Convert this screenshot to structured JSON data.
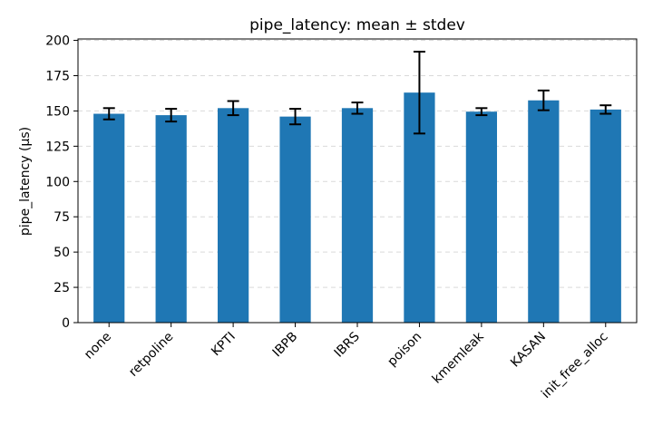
{
  "chart_data": {
    "type": "bar",
    "title": "pipe_latency: mean ± stdev",
    "xlabel": "",
    "ylabel": "pipe_latency (µs)",
    "categories": [
      "none",
      "retpoline",
      "KPTI",
      "IBPB",
      "IBRS",
      "poison",
      "kmemleak",
      "KASAN",
      "init_free_alloc"
    ],
    "values": [
      148,
      147,
      152,
      146,
      152,
      163,
      149.5,
      157.5,
      151
    ],
    "errors": [
      4,
      4.5,
      5,
      5.5,
      4,
      29,
      2.5,
      7,
      3
    ],
    "ylim": [
      0,
      201
    ],
    "yticks": [
      0,
      25,
      50,
      75,
      100,
      125,
      150,
      175,
      200
    ],
    "grid": "y-dashed",
    "bar_color": "#1f77b4",
    "error_color": "#000000"
  }
}
